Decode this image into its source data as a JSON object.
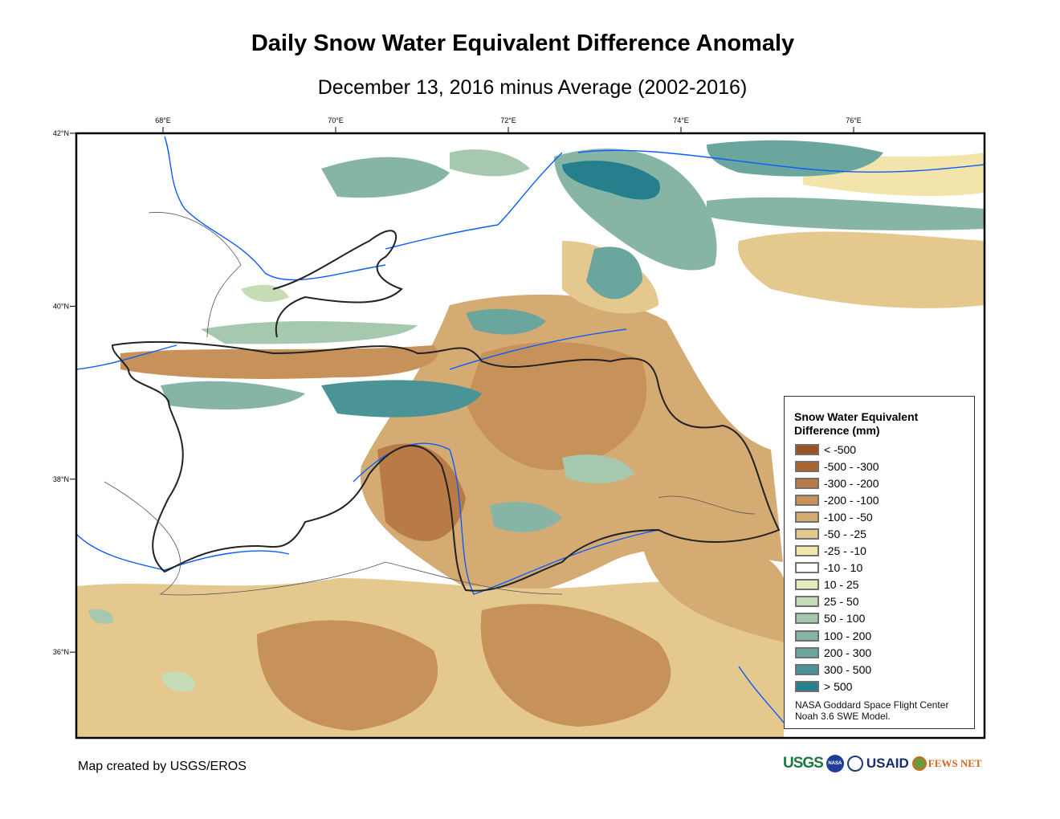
{
  "title": "Daily Snow Water Equivalent Difference Anomaly",
  "subtitle": "December 13, 2016 minus Average (2002-2016)",
  "axes": {
    "longitude_ticks": [
      {
        "value": 68,
        "label": "68°E"
      },
      {
        "value": 70,
        "label": "70°E"
      },
      {
        "value": 72,
        "label": "72°E"
      },
      {
        "value": 74,
        "label": "74°E"
      },
      {
        "value": 76,
        "label": "76°E"
      }
    ],
    "latitude_ticks": [
      {
        "value": 42,
        "label": "42°N"
      },
      {
        "value": 40,
        "label": "40°N"
      },
      {
        "value": 38,
        "label": "38°N"
      },
      {
        "value": 36,
        "label": "36°N"
      }
    ]
  },
  "legend": {
    "title_line1": "Snow Water Equivalent",
    "title_line2": "Difference (mm)",
    "items": [
      {
        "label": "< -500",
        "color": "#9a5221"
      },
      {
        "label": "-500 - -300",
        "color": "#a8652f"
      },
      {
        "label": "-300 - -200",
        "color": "#b87b45"
      },
      {
        "label": "-200 - -100",
        "color": "#c69259"
      },
      {
        "label": "-100 - -50",
        "color": "#d4ab73"
      },
      {
        "label": "-50 - -25",
        "color": "#e4c88e"
      },
      {
        "label": "-25 - -10",
        "color": "#f2e4aa"
      },
      {
        "label": "-10 - 10",
        "color": "#ffffff"
      },
      {
        "label": "10 - 25",
        "color": "#e2ecbf"
      },
      {
        "label": "25 - 50",
        "color": "#c6dcb6"
      },
      {
        "label": "50 - 100",
        "color": "#a5c8ae"
      },
      {
        "label": "100 - 200",
        "color": "#86b5a6"
      },
      {
        "label": "200 - 300",
        "color": "#6aa59e"
      },
      {
        "label": "300 - 500",
        "color": "#4a9498"
      },
      {
        "label": "> 500",
        "color": "#267f8c"
      }
    ],
    "credit_line1": "NASA Goddard Space Flight Center",
    "credit_line2": "Noah 3.6 SWE Model."
  },
  "footer": {
    "credit": "Map created by USGS/EROS",
    "logos": {
      "usgs": "USGS",
      "nasa": "NASA",
      "usaid": "USAID",
      "fews": "FEWS NET"
    }
  }
}
